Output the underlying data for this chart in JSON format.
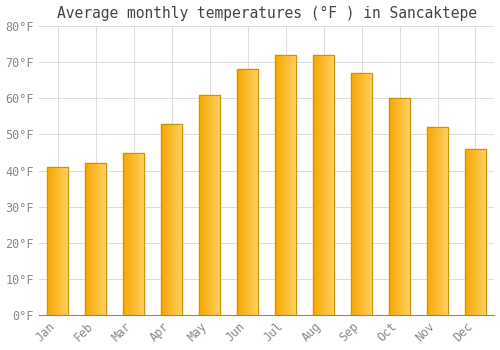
{
  "title": "Average monthly temperatures (°F ) in Sancaktepe",
  "months": [
    "Jan",
    "Feb",
    "Mar",
    "Apr",
    "May",
    "Jun",
    "Jul",
    "Aug",
    "Sep",
    "Oct",
    "Nov",
    "Dec"
  ],
  "values": [
    41,
    42,
    45,
    53,
    61,
    68,
    72,
    72,
    67,
    60,
    52,
    46
  ],
  "bar_color_left": "#F5A800",
  "bar_color_right": "#FFD060",
  "bar_edge_color": "#C8960A",
  "background_color": "#FFFFFF",
  "grid_color": "#DDDDDD",
  "text_color": "#888888",
  "ylim": [
    0,
    80
  ],
  "yticks": [
    0,
    10,
    20,
    30,
    40,
    50,
    60,
    70,
    80
  ],
  "title_fontsize": 10.5,
  "tick_fontsize": 8.5,
  "bar_width": 0.55
}
